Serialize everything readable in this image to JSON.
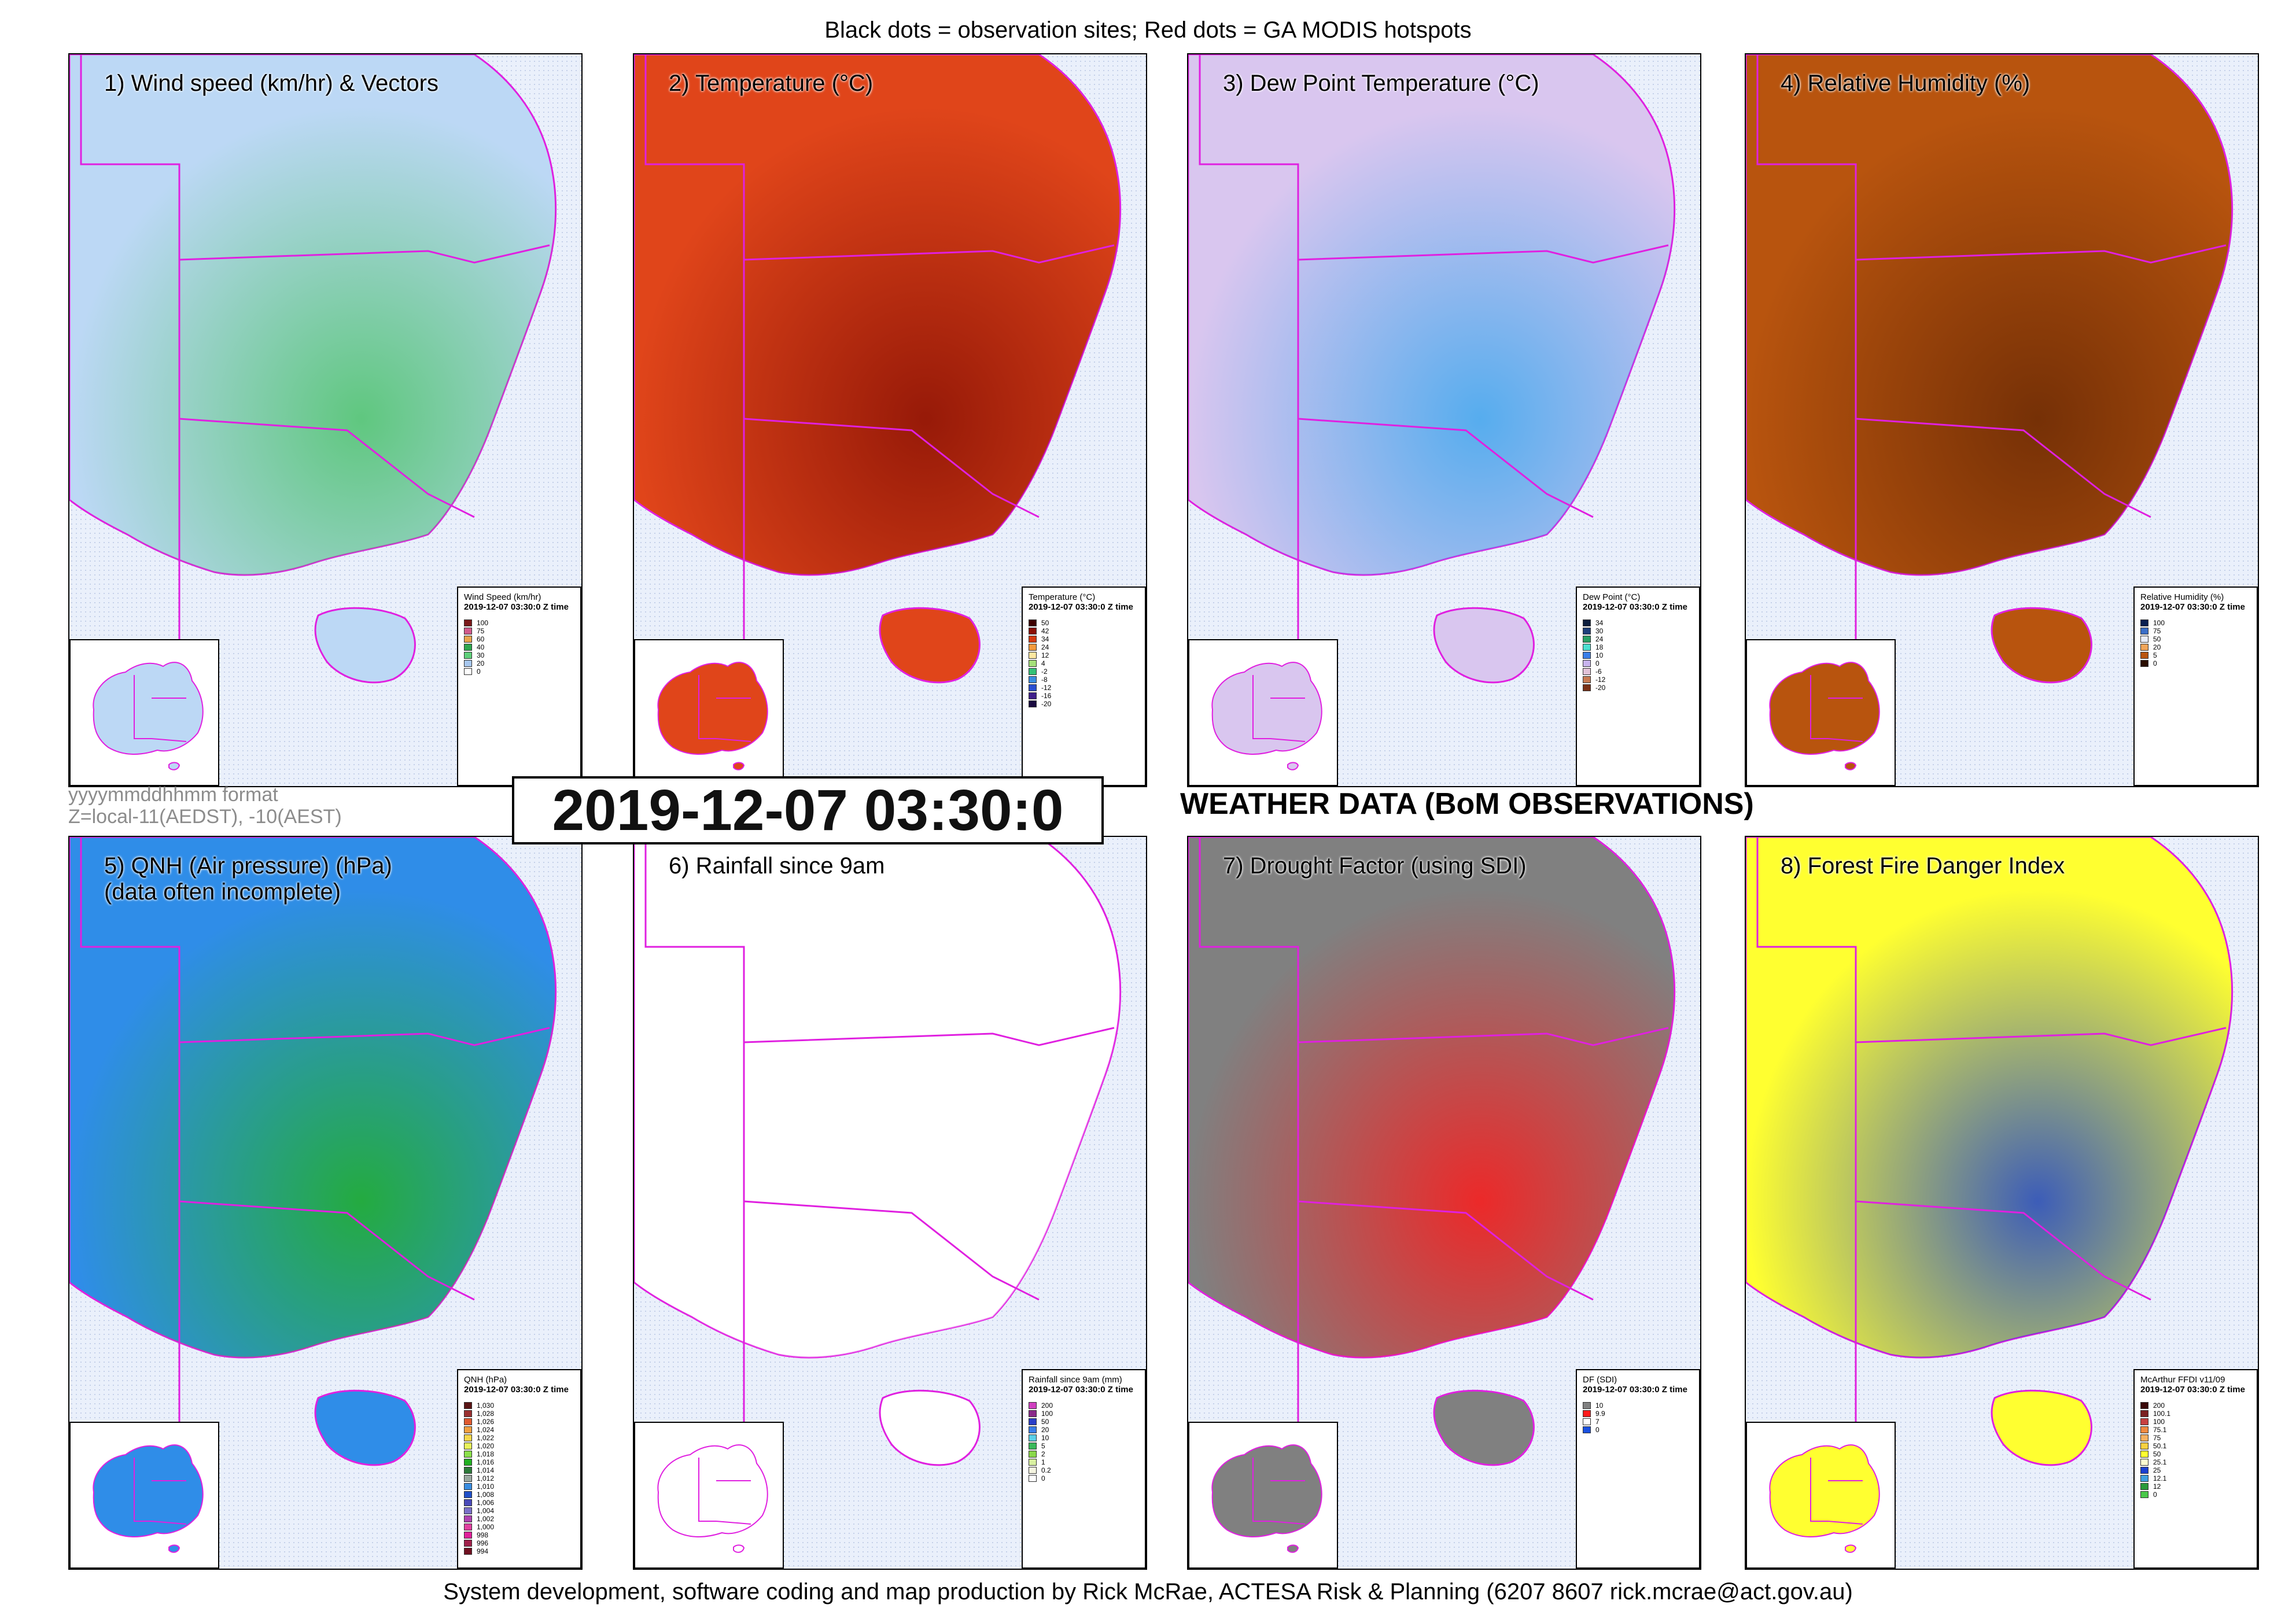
{
  "header": {
    "caption": "Black dots = observation sites; Red dots = GA MODIS hotspots"
  },
  "timestamp": "2019-12-07 03:30:0",
  "format_note": {
    "line1": "yyyymmddhhmm format",
    "line2": "Z=local-11(AEDST), -10(AEST)"
  },
  "main_title": "WEATHER DATA (BoM OBSERVATIONS)",
  "footer": "System development, software coding and map production by Rick McRae, ACTESA Risk & Planning (6207 8607 rick.mcrae@act.gov.au)",
  "panels": [
    {
      "title": "1) Wind speed (km/hr) & Vectors",
      "fill": "#bcd8f5",
      "accent": "#4fc46a",
      "legend": {
        "title": "Wind Speed (km/hr)",
        "date": "2019-12-07 03:30:0 Z time",
        "items": [
          {
            "label": "100",
            "color": "#7a1a1a"
          },
          {
            "label": "75",
            "color": "#d15a8c"
          },
          {
            "label": "60",
            "color": "#e8a54e"
          },
          {
            "label": "40",
            "color": "#2fa84f"
          },
          {
            "label": "30",
            "color": "#5fd07a"
          },
          {
            "label": "20",
            "color": "#a8c8ef"
          },
          {
            "label": "0",
            "color": "#ffffff"
          }
        ]
      }
    },
    {
      "title": "2) Temperature (°C)",
      "fill": "#e0451a",
      "accent": "#8a1205",
      "legend": {
        "title": "Temperature (°C)",
        "date": "2019-12-07 03:30:0 Z time",
        "items": [
          {
            "label": "50",
            "color": "#3d0000"
          },
          {
            "label": "42",
            "color": "#8a0f05"
          },
          {
            "label": "34",
            "color": "#d43a10"
          },
          {
            "label": "24",
            "color": "#f39a3c"
          },
          {
            "label": "12",
            "color": "#fde7a0"
          },
          {
            "label": "4",
            "color": "#a5e07a"
          },
          {
            "label": "-2",
            "color": "#33c276"
          },
          {
            "label": "-8",
            "color": "#3a8de0"
          },
          {
            "label": "-12",
            "color": "#2a4fd0"
          },
          {
            "label": "-16",
            "color": "#40208a"
          },
          {
            "label": "-20",
            "color": "#1a0b40"
          }
        ]
      }
    },
    {
      "title": "3) Dew Point Temperature (°C)",
      "fill": "#d9c6ef",
      "accent": "#3fa8ee",
      "legend": {
        "title": "Dew Point (°C)",
        "date": "2019-12-07 03:30:0 Z time",
        "items": [
          {
            "label": "34",
            "color": "#0d1e3d"
          },
          {
            "label": "30",
            "color": "#1f3f7a"
          },
          {
            "label": "24",
            "color": "#2aa065"
          },
          {
            "label": "18",
            "color": "#4be0d0"
          },
          {
            "label": "10",
            "color": "#3a7ee8"
          },
          {
            "label": "0",
            "color": "#c8b4ee"
          },
          {
            "label": "-6",
            "color": "#e2c3d8"
          },
          {
            "label": "-12",
            "color": "#c87a52"
          },
          {
            "label": "-20",
            "color": "#7a3015"
          }
        ]
      }
    },
    {
      "title": "4) Relative Humidity (%)",
      "fill": "#b8540e",
      "accent": "#6a2a05",
      "legend": {
        "title": "Relative Humidity (%)",
        "date": "2019-12-07 03:30:0 Z time",
        "items": [
          {
            "label": "100",
            "color": "#0b2050"
          },
          {
            "label": "75",
            "color": "#3a6ec8"
          },
          {
            "label": "50",
            "color": "#e8ecf8"
          },
          {
            "label": "20",
            "color": "#f0a55a"
          },
          {
            "label": "5",
            "color": "#b8540e"
          },
          {
            "label": "0",
            "color": "#2a0e00"
          }
        ]
      }
    },
    {
      "title": "5) QNH (Air pressure) (hPa)\n(data often incomplete)",
      "fill": "#2f8de8",
      "accent": "#22b022",
      "legend": {
        "title": "QNH (hPa)",
        "date": "2019-12-07 03:30:0 Z time",
        "items": [
          {
            "label": "1,030",
            "color": "#5a1414"
          },
          {
            "label": "1,028",
            "color": "#9a3030"
          },
          {
            "label": "1,026",
            "color": "#e05a30"
          },
          {
            "label": "1,024",
            "color": "#f2a040"
          },
          {
            "label": "1,022",
            "color": "#f6d84a"
          },
          {
            "label": "1,020",
            "color": "#e8f25a"
          },
          {
            "label": "1,018",
            "color": "#8be04a"
          },
          {
            "label": "1,016",
            "color": "#22b022"
          },
          {
            "label": "1,014",
            "color": "#2d7a3a"
          },
          {
            "label": "1,012",
            "color": "#9aa8a0"
          },
          {
            "label": "1,010",
            "color": "#3a8de0"
          },
          {
            "label": "1,008",
            "color": "#2050c8"
          },
          {
            "label": "1,006",
            "color": "#4a4ab8"
          },
          {
            "label": "1,004",
            "color": "#7a70c8"
          },
          {
            "label": "1,002",
            "color": "#b040b0"
          },
          {
            "label": "1,000",
            "color": "#e040a0"
          },
          {
            "label": "998",
            "color": "#e0209a"
          },
          {
            "label": "996",
            "color": "#a0204a"
          },
          {
            "label": "994",
            "color": "#701020"
          }
        ]
      }
    },
    {
      "title": "6) Rainfall since 9am",
      "fill": "#ffffff",
      "accent": "#ffffff",
      "legend": {
        "title": "Rainfall since 9am (mm)",
        "date": "2019-12-07 03:30:0 Z time",
        "items": [
          {
            "label": "200",
            "color": "#d040c0"
          },
          {
            "label": "100",
            "color": "#8a2a8a"
          },
          {
            "label": "50",
            "color": "#2a3ec8"
          },
          {
            "label": "20",
            "color": "#3a7ee8"
          },
          {
            "label": "10",
            "color": "#5ad0e8"
          },
          {
            "label": "5",
            "color": "#3ab85a"
          },
          {
            "label": "2",
            "color": "#8ad84a"
          },
          {
            "label": "1",
            "color": "#d8f0a0"
          },
          {
            "label": "0.2",
            "color": "#f4f4e0"
          },
          {
            "label": "0",
            "color": "#ffffff"
          }
        ]
      }
    },
    {
      "title": "7) Drought Factor (using SDI)",
      "fill": "#808080",
      "accent": "#ff1a1a",
      "legend": {
        "title": "DF (SDI)",
        "date": "2019-12-07 03:30:0 Z time",
        "items": [
          {
            "label": "10",
            "color": "#808080"
          },
          {
            "label": "9.9",
            "color": "#ff1a1a"
          },
          {
            "label": "7",
            "color": "#ffffff"
          },
          {
            "label": "0",
            "color": "#1a50e0"
          }
        ]
      }
    },
    {
      "title": "8) Forest Fire Danger Index",
      "fill": "#ffff30",
      "accent": "#1a40d0",
      "legend": {
        "title": "McArthur FFDI v11/09",
        "date": "2019-12-07 03:30:0 Z time",
        "items": [
          {
            "label": "200",
            "color": "#3a0a0a"
          },
          {
            "label": "100.1",
            "color": "#7a2020"
          },
          {
            "label": "100",
            "color": "#c84040"
          },
          {
            "label": "75.1",
            "color": "#f08a40"
          },
          {
            "label": "75",
            "color": "#f5b060"
          },
          {
            "label": "50.1",
            "color": "#f5d040"
          },
          {
            "label": "50",
            "color": "#ffff30"
          },
          {
            "label": "25.1",
            "color": "#fbfbd0"
          },
          {
            "label": "25",
            "color": "#1a40d0"
          },
          {
            "label": "12.1",
            "color": "#40a0e0"
          },
          {
            "label": "12",
            "color": "#2a9a3a"
          },
          {
            "label": "0",
            "color": "#4ac84a"
          }
        ]
      }
    }
  ]
}
